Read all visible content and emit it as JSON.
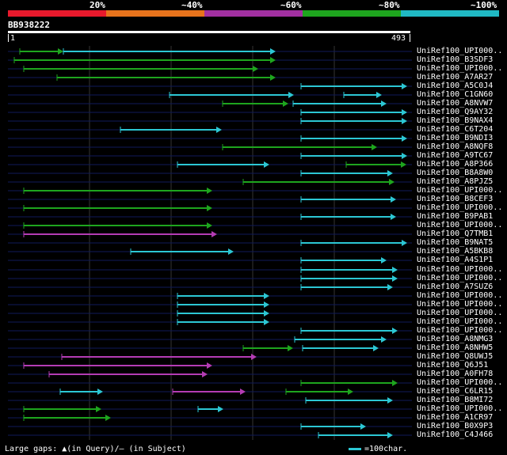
{
  "identity_scale": [
    {
      "label": "20%",
      "color": "#e8192c"
    },
    {
      "label": "~40%",
      "color": "#e7731c"
    },
    {
      "label": "~60%",
      "color": "#a230a1"
    },
    {
      "label": "~80%",
      "color": "#1ea51e"
    },
    {
      "label": "~100%",
      "color": "#20b9c4"
    }
  ],
  "query": {
    "name": "BB938222",
    "start": "1",
    "end": "493"
  },
  "hits": [
    {
      "name": "UniRef100_UPI000..",
      "segments": [
        [
          25,
          80,
          "green"
        ],
        [
          80,
          348,
          "cyan"
        ]
      ]
    },
    {
      "name": "UniRef100_B3SDF3",
      "segments": [
        [
          18,
          348,
          "green"
        ]
      ]
    },
    {
      "name": "UniRef100_UPI000..",
      "segments": [
        [
          30,
          326,
          "green"
        ]
      ]
    },
    {
      "name": "UniRef100_A7AR27",
      "segments": [
        [
          72,
          348,
          "green"
        ]
      ]
    },
    {
      "name": "UniRef100_A5C0J4",
      "segments": [
        [
          380,
          514,
          "cyan"
        ]
      ]
    },
    {
      "name": "UniRef100_C1GN60",
      "segments": [
        [
          214,
          371,
          "cyan"
        ],
        [
          434,
          482,
          "cyan"
        ]
      ]
    },
    {
      "name": "UniRef100_A8NVW7",
      "segments": [
        [
          281,
          364,
          "green"
        ],
        [
          370,
          488,
          "cyan"
        ]
      ]
    },
    {
      "name": "UniRef100_Q9AY32",
      "segments": [
        [
          380,
          514,
          "cyan"
        ]
      ]
    },
    {
      "name": "UniRef100_B9NAX4",
      "segments": [
        [
          380,
          514,
          "cyan"
        ]
      ]
    },
    {
      "name": "UniRef100_C6T204",
      "segments": [
        [
          152,
          280,
          "cyan"
        ]
      ]
    },
    {
      "name": "UniRef100_B9NDI3",
      "segments": [
        [
          380,
          514,
          "cyan"
        ]
      ]
    },
    {
      "name": "UniRef100_A8NQF8",
      "segments": [
        [
          281,
          476,
          "green"
        ]
      ]
    },
    {
      "name": "UniRef100_A9TC67",
      "segments": [
        [
          380,
          514,
          "cyan"
        ]
      ]
    },
    {
      "name": "UniRef100_A8P366",
      "segments": [
        [
          224,
          340,
          "cyan"
        ],
        [
          437,
          513,
          "green"
        ]
      ]
    },
    {
      "name": "UniRef100_B8A8W0",
      "segments": [
        [
          380,
          496,
          "cyan"
        ]
      ]
    },
    {
      "name": "UniRef100_A8PJZ5",
      "segments": [
        [
          307,
          498,
          "green"
        ]
      ]
    },
    {
      "name": "UniRef100_UPI000..",
      "segments": [
        [
          30,
          268,
          "green"
        ]
      ]
    },
    {
      "name": "UniRef100_B8CEF3",
      "segments": [
        [
          380,
          500,
          "cyan"
        ]
      ]
    },
    {
      "name": "UniRef100_UPI000..",
      "segments": [
        [
          30,
          268,
          "green"
        ]
      ]
    },
    {
      "name": "UniRef100_B9PAB1",
      "segments": [
        [
          380,
          500,
          "cyan"
        ]
      ]
    },
    {
      "name": "UniRef100_UPI000..",
      "segments": [
        [
          30,
          268,
          "green"
        ]
      ]
    },
    {
      "name": "UniRef100_Q7TMB1",
      "segments": [
        [
          30,
          274,
          "magenta"
        ]
      ]
    },
    {
      "name": "UniRef100_B9NAT5",
      "segments": [
        [
          380,
          514,
          "cyan"
        ]
      ]
    },
    {
      "name": "UniRef100_A5BKB8",
      "segments": [
        [
          165,
          295,
          "cyan"
        ]
      ]
    },
    {
      "name": "UniRef100_A4S1P1",
      "segments": [
        [
          380,
          488,
          "cyan"
        ]
      ]
    },
    {
      "name": "UniRef100_UPI000..",
      "segments": [
        [
          380,
          502,
          "cyan"
        ]
      ]
    },
    {
      "name": "UniRef100_UPI000..",
      "segments": [
        [
          380,
          502,
          "cyan"
        ]
      ]
    },
    {
      "name": "UniRef100_A7SUZ6",
      "segments": [
        [
          380,
          496,
          "cyan"
        ]
      ]
    },
    {
      "name": "UniRef100_UPI000..",
      "segments": [
        [
          224,
          340,
          "cyan"
        ]
      ]
    },
    {
      "name": "UniRef100_UPI000..",
      "segments": [
        [
          224,
          340,
          "cyan"
        ]
      ]
    },
    {
      "name": "UniRef100_UPI000..",
      "segments": [
        [
          224,
          340,
          "cyan"
        ]
      ]
    },
    {
      "name": "UniRef100_UPI000..",
      "segments": [
        [
          224,
          340,
          "cyan"
        ]
      ]
    },
    {
      "name": "UniRef100_UPI000..",
      "segments": [
        [
          380,
          502,
          "cyan"
        ]
      ]
    },
    {
      "name": "UniRef100_A8NMG3",
      "segments": [
        [
          372,
          488,
          "cyan"
        ]
      ]
    },
    {
      "name": "UniRef100_A8NHW5",
      "segments": [
        [
          307,
          370,
          "green"
        ],
        [
          382,
          478,
          "cyan"
        ]
      ]
    },
    {
      "name": "UniRef100_Q8UWJ5",
      "segments": [
        [
          78,
          324,
          "magenta"
        ]
      ]
    },
    {
      "name": "UniRef100_Q6J51",
      "segments": [
        [
          30,
          268,
          "magenta"
        ]
      ]
    },
    {
      "name": "UniRef100_A0FH78",
      "segments": [
        [
          62,
          262,
          "magenta"
        ]
      ]
    },
    {
      "name": "UniRef100_UPI000..",
      "segments": [
        [
          380,
          502,
          "green"
        ]
      ]
    },
    {
      "name": "UniRef100_C6LR15",
      "segments": [
        [
          76,
          130,
          "cyan"
        ],
        [
          218,
          310,
          "magenta"
        ],
        [
          361,
          446,
          "green"
        ]
      ]
    },
    {
      "name": "UniRef100_B8MI72",
      "segments": [
        [
          386,
          496,
          "cyan"
        ]
      ]
    },
    {
      "name": "UniRef100_UPI000..",
      "segments": [
        [
          30,
          128,
          "green"
        ],
        [
          250,
          282,
          "cyan"
        ]
      ]
    },
    {
      "name": "UniRef100_A1CR97",
      "segments": [
        [
          30,
          140,
          "green"
        ]
      ]
    },
    {
      "name": "UniRef100_B0X9P3",
      "segments": [
        [
          380,
          462,
          "cyan"
        ]
      ]
    },
    {
      "name": "UniRef100_C4J466",
      "segments": [
        [
          402,
          496,
          "cyan"
        ]
      ]
    }
  ],
  "colors": {
    "cyan": "#2cc7d4",
    "green": "#1ea51e",
    "magenta": "#b43cb4",
    "row_line": "#0f1a5a",
    "grid": "#333333"
  },
  "legend": {
    "gaps_text": "Large gaps: ▲(in Query)/– (in Subject)",
    "scale_text": "=100char."
  }
}
